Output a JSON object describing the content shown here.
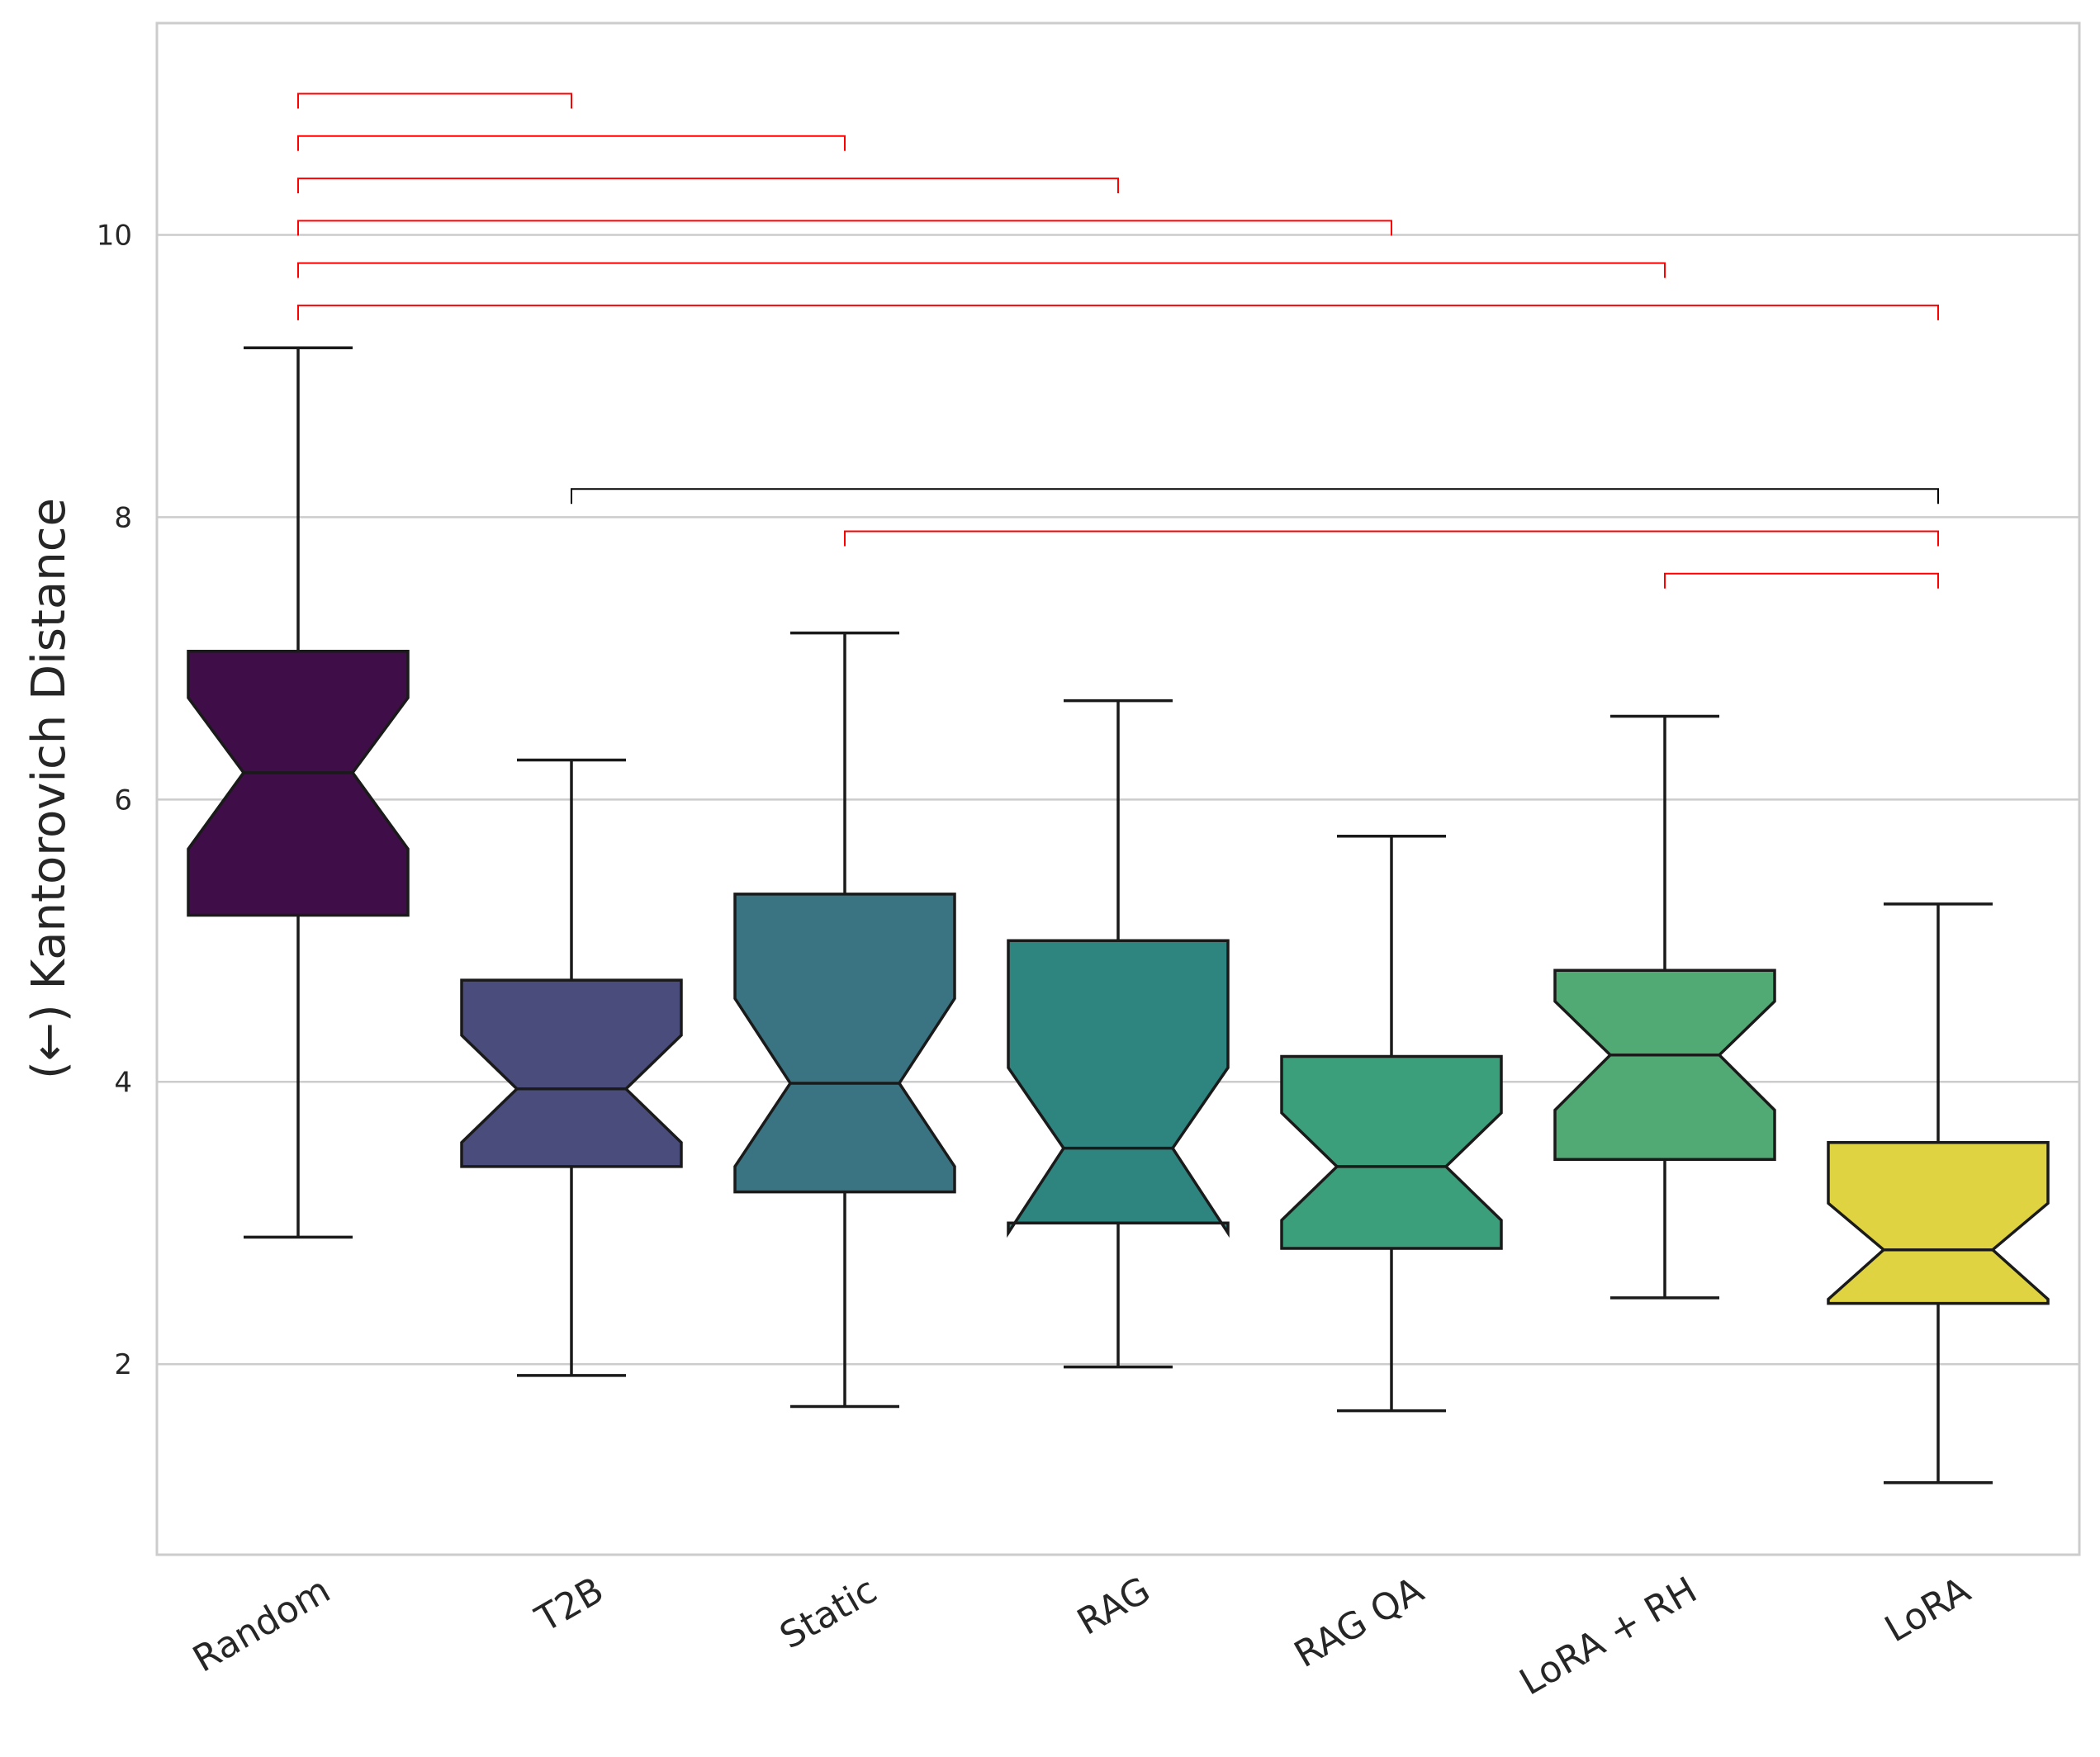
{
  "chart_data": {
    "type": "box",
    "title": "",
    "xlabel": "",
    "ylabel": "(←) Kantorovich Distance",
    "ylim": [
      0.65,
      11.5
    ],
    "yticks": [
      2,
      4,
      6,
      8,
      10
    ],
    "grid": true,
    "notched": true,
    "categories": [
      "Random",
      "T2B",
      "Static",
      "RAG",
      "RAG QA",
      "LoRA + RH",
      "LoRA"
    ],
    "colors": [
      "#3f0d47",
      "#4a4d7c",
      "#3a7381",
      "#2e847f",
      "#3b9f7b",
      "#51a973",
      "#e0d342"
    ],
    "boxes": [
      {
        "whislo": 2.9,
        "q1": 5.18,
        "med": 6.19,
        "q3": 7.05,
        "whishi": 9.2,
        "notch_lo": 5.65,
        "notch_hi": 6.72
      },
      {
        "whislo": 1.92,
        "q1": 3.4,
        "med": 3.95,
        "q3": 4.72,
        "whishi": 6.28,
        "notch_lo": 3.57,
        "notch_hi": 4.33
      },
      {
        "whislo": 1.7,
        "q1": 3.22,
        "med": 3.99,
        "q3": 5.33,
        "whishi": 7.18,
        "notch_lo": 3.4,
        "notch_hi": 4.59
      },
      {
        "whislo": 1.98,
        "q1": 3.0,
        "med": 3.53,
        "q3": 5.0,
        "whishi": 6.7,
        "notch_lo": 2.93,
        "notch_hi": 4.1
      },
      {
        "whislo": 1.67,
        "q1": 2.82,
        "med": 3.4,
        "q3": 4.18,
        "whishi": 5.74,
        "notch_lo": 3.02,
        "notch_hi": 3.78
      },
      {
        "whislo": 2.47,
        "q1": 3.45,
        "med": 4.19,
        "q3": 4.79,
        "whishi": 6.59,
        "notch_lo": 3.8,
        "notch_hi": 4.57
      },
      {
        "whislo": 1.16,
        "q1": 2.43,
        "med": 2.81,
        "q3": 3.57,
        "whishi": 5.26,
        "notch_lo": 2.46,
        "notch_hi": 3.14
      }
    ],
    "significance_brackets": [
      {
        "from": 0,
        "to": 1,
        "y": 11.0,
        "color": "#ff0000"
      },
      {
        "from": 0,
        "to": 2,
        "y": 10.7,
        "color": "#ff0000"
      },
      {
        "from": 0,
        "to": 3,
        "y": 10.4,
        "color": "#ff0000"
      },
      {
        "from": 0,
        "to": 4,
        "y": 10.1,
        "color": "#ff0000"
      },
      {
        "from": 0,
        "to": 5,
        "y": 9.8,
        "color": "#ff0000"
      },
      {
        "from": 0,
        "to": 6,
        "y": 9.5,
        "color": "#ff0000"
      },
      {
        "from": 1,
        "to": 6,
        "y": 8.2,
        "color": "#000000"
      },
      {
        "from": 2,
        "to": 6,
        "y": 7.9,
        "color": "#ff0000"
      },
      {
        "from": 5,
        "to": 6,
        "y": 7.6,
        "color": "#ff0000"
      }
    ]
  }
}
